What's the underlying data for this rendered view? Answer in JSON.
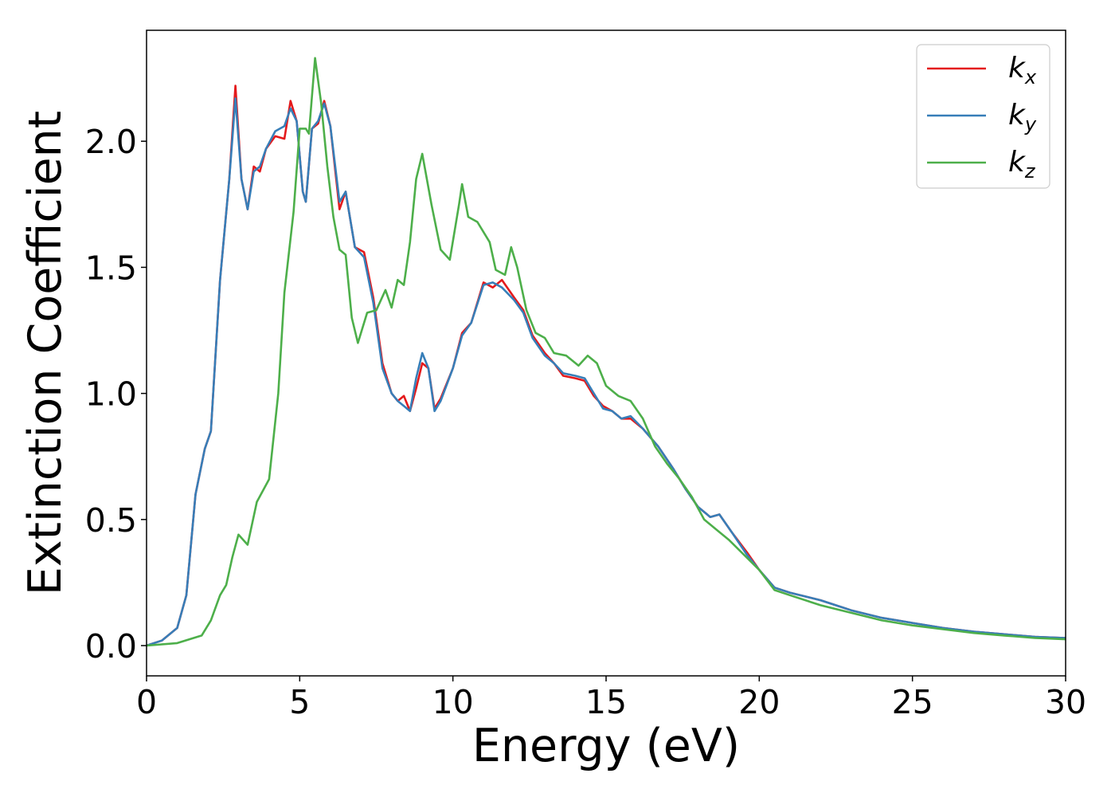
{
  "chart_data": {
    "type": "line",
    "xlabel": "Energy (eV)",
    "ylabel": "Extinction Coefficient",
    "xlim": [
      0,
      30
    ],
    "ylim": [
      -0.12,
      2.44
    ],
    "xticks": [
      "0",
      "5",
      "10",
      "15",
      "20",
      "25",
      "30"
    ],
    "yticks": [
      "0.0",
      "0.5",
      "1.0",
      "1.5",
      "2.0"
    ],
    "grid": false,
    "legend_position": "top-right",
    "series": [
      {
        "name": "k",
        "subscript": "x",
        "color": "#e41a1c",
        "points": [
          [
            0,
            0
          ],
          [
            0.5,
            0.02
          ],
          [
            1.0,
            0.07
          ],
          [
            1.3,
            0.2
          ],
          [
            1.6,
            0.6
          ],
          [
            1.9,
            0.78
          ],
          [
            2.1,
            0.85
          ],
          [
            2.4,
            1.45
          ],
          [
            2.7,
            1.85
          ],
          [
            2.9,
            2.22
          ],
          [
            3.1,
            1.85
          ],
          [
            3.3,
            1.73
          ],
          [
            3.5,
            1.9
          ],
          [
            3.7,
            1.88
          ],
          [
            3.9,
            1.97
          ],
          [
            4.2,
            2.02
          ],
          [
            4.5,
            2.01
          ],
          [
            4.7,
            2.16
          ],
          [
            4.9,
            2.08
          ],
          [
            5.1,
            1.8
          ],
          [
            5.2,
            1.76
          ],
          [
            5.4,
            2.05
          ],
          [
            5.6,
            2.07
          ],
          [
            5.8,
            2.16
          ],
          [
            6.0,
            2.06
          ],
          [
            6.3,
            1.73
          ],
          [
            6.5,
            1.8
          ],
          [
            6.8,
            1.58
          ],
          [
            7.1,
            1.56
          ],
          [
            7.4,
            1.38
          ],
          [
            7.7,
            1.12
          ],
          [
            8.0,
            1.0
          ],
          [
            8.2,
            0.97
          ],
          [
            8.4,
            0.99
          ],
          [
            8.6,
            0.93
          ],
          [
            8.8,
            1.02
          ],
          [
            9.0,
            1.12
          ],
          [
            9.2,
            1.1
          ],
          [
            9.4,
            0.94
          ],
          [
            9.6,
            0.98
          ],
          [
            10.0,
            1.1
          ],
          [
            10.3,
            1.24
          ],
          [
            10.6,
            1.28
          ],
          [
            11.0,
            1.44
          ],
          [
            11.3,
            1.42
          ],
          [
            11.6,
            1.45
          ],
          [
            12.0,
            1.38
          ],
          [
            12.3,
            1.33
          ],
          [
            12.6,
            1.23
          ],
          [
            13.0,
            1.16
          ],
          [
            13.3,
            1.12
          ],
          [
            13.6,
            1.07
          ],
          [
            14.0,
            1.06
          ],
          [
            14.3,
            1.05
          ],
          [
            14.6,
            0.99
          ],
          [
            14.9,
            0.95
          ],
          [
            15.2,
            0.93
          ],
          [
            15.5,
            0.9
          ],
          [
            15.8,
            0.9
          ],
          [
            16.2,
            0.86
          ],
          [
            16.7,
            0.79
          ],
          [
            17.2,
            0.7
          ],
          [
            17.6,
            0.62
          ],
          [
            18.0,
            0.55
          ],
          [
            18.4,
            0.51
          ],
          [
            18.7,
            0.52
          ],
          [
            19.1,
            0.45
          ],
          [
            19.6,
            0.37
          ],
          [
            20.0,
            0.3
          ],
          [
            20.5,
            0.23
          ],
          [
            21.0,
            0.21
          ],
          [
            22.0,
            0.18
          ],
          [
            23.0,
            0.14
          ],
          [
            24.0,
            0.11
          ],
          [
            25.0,
            0.09
          ],
          [
            26.0,
            0.07
          ],
          [
            27.0,
            0.055
          ],
          [
            28.0,
            0.045
          ],
          [
            29.0,
            0.035
          ],
          [
            30.0,
            0.03
          ]
        ]
      },
      {
        "name": "k",
        "subscript": "y",
        "color": "#377eb8",
        "points": [
          [
            0,
            0
          ],
          [
            0.5,
            0.02
          ],
          [
            1.0,
            0.07
          ],
          [
            1.3,
            0.2
          ],
          [
            1.6,
            0.6
          ],
          [
            1.9,
            0.78
          ],
          [
            2.1,
            0.85
          ],
          [
            2.4,
            1.45
          ],
          [
            2.7,
            1.85
          ],
          [
            2.9,
            2.17
          ],
          [
            3.1,
            1.85
          ],
          [
            3.3,
            1.73
          ],
          [
            3.5,
            1.88
          ],
          [
            3.7,
            1.9
          ],
          [
            3.9,
            1.97
          ],
          [
            4.2,
            2.04
          ],
          [
            4.5,
            2.06
          ],
          [
            4.7,
            2.13
          ],
          [
            4.9,
            2.08
          ],
          [
            5.1,
            1.8
          ],
          [
            5.2,
            1.76
          ],
          [
            5.4,
            2.05
          ],
          [
            5.6,
            2.08
          ],
          [
            5.8,
            2.15
          ],
          [
            6.0,
            2.06
          ],
          [
            6.3,
            1.76
          ],
          [
            6.5,
            1.8
          ],
          [
            6.8,
            1.58
          ],
          [
            7.1,
            1.54
          ],
          [
            7.4,
            1.36
          ],
          [
            7.7,
            1.1
          ],
          [
            8.0,
            1.0
          ],
          [
            8.2,
            0.97
          ],
          [
            8.4,
            0.95
          ],
          [
            8.6,
            0.93
          ],
          [
            8.8,
            1.06
          ],
          [
            9.0,
            1.16
          ],
          [
            9.2,
            1.1
          ],
          [
            9.4,
            0.93
          ],
          [
            9.6,
            0.97
          ],
          [
            10.0,
            1.1
          ],
          [
            10.3,
            1.23
          ],
          [
            10.6,
            1.28
          ],
          [
            11.0,
            1.43
          ],
          [
            11.3,
            1.44
          ],
          [
            11.6,
            1.42
          ],
          [
            12.0,
            1.37
          ],
          [
            12.3,
            1.32
          ],
          [
            12.6,
            1.22
          ],
          [
            13.0,
            1.15
          ],
          [
            13.3,
            1.12
          ],
          [
            13.6,
            1.08
          ],
          [
            14.0,
            1.07
          ],
          [
            14.3,
            1.06
          ],
          [
            14.6,
            1.0
          ],
          [
            14.9,
            0.94
          ],
          [
            15.2,
            0.93
          ],
          [
            15.5,
            0.9
          ],
          [
            15.8,
            0.91
          ],
          [
            16.2,
            0.86
          ],
          [
            16.7,
            0.79
          ],
          [
            17.2,
            0.7
          ],
          [
            17.6,
            0.62
          ],
          [
            18.0,
            0.55
          ],
          [
            18.4,
            0.51
          ],
          [
            18.7,
            0.52
          ],
          [
            19.1,
            0.45
          ],
          [
            19.6,
            0.36
          ],
          [
            20.0,
            0.3
          ],
          [
            20.5,
            0.23
          ],
          [
            21.0,
            0.21
          ],
          [
            22.0,
            0.18
          ],
          [
            23.0,
            0.14
          ],
          [
            24.0,
            0.11
          ],
          [
            25.0,
            0.09
          ],
          [
            26.0,
            0.07
          ],
          [
            27.0,
            0.055
          ],
          [
            28.0,
            0.045
          ],
          [
            29.0,
            0.035
          ],
          [
            30.0,
            0.03
          ]
        ]
      },
      {
        "name": "k",
        "subscript": "z",
        "color": "#4daf4a",
        "points": [
          [
            0,
            0
          ],
          [
            1.0,
            0.01
          ],
          [
            1.8,
            0.04
          ],
          [
            2.1,
            0.1
          ],
          [
            2.4,
            0.2
          ],
          [
            2.6,
            0.24
          ],
          [
            2.8,
            0.35
          ],
          [
            3.0,
            0.44
          ],
          [
            3.3,
            0.4
          ],
          [
            3.6,
            0.57
          ],
          [
            4.0,
            0.66
          ],
          [
            4.3,
            1.0
          ],
          [
            4.5,
            1.4
          ],
          [
            4.8,
            1.72
          ],
          [
            5.0,
            2.05
          ],
          [
            5.2,
            2.05
          ],
          [
            5.3,
            2.03
          ],
          [
            5.5,
            2.33
          ],
          [
            5.7,
            2.15
          ],
          [
            5.9,
            1.9
          ],
          [
            6.1,
            1.7
          ],
          [
            6.3,
            1.57
          ],
          [
            6.5,
            1.55
          ],
          [
            6.7,
            1.3
          ],
          [
            6.9,
            1.2
          ],
          [
            7.2,
            1.32
          ],
          [
            7.5,
            1.33
          ],
          [
            7.8,
            1.41
          ],
          [
            8.0,
            1.34
          ],
          [
            8.2,
            1.45
          ],
          [
            8.4,
            1.43
          ],
          [
            8.6,
            1.6
          ],
          [
            8.8,
            1.85
          ],
          [
            9.0,
            1.95
          ],
          [
            9.3,
            1.75
          ],
          [
            9.6,
            1.57
          ],
          [
            9.9,
            1.53
          ],
          [
            10.2,
            1.75
          ],
          [
            10.3,
            1.83
          ],
          [
            10.5,
            1.7
          ],
          [
            10.8,
            1.68
          ],
          [
            11.2,
            1.6
          ],
          [
            11.4,
            1.49
          ],
          [
            11.7,
            1.47
          ],
          [
            11.9,
            1.58
          ],
          [
            12.1,
            1.5
          ],
          [
            12.4,
            1.33
          ],
          [
            12.7,
            1.24
          ],
          [
            13.0,
            1.22
          ],
          [
            13.3,
            1.16
          ],
          [
            13.7,
            1.15
          ],
          [
            14.1,
            1.11
          ],
          [
            14.4,
            1.15
          ],
          [
            14.7,
            1.12
          ],
          [
            15.0,
            1.03
          ],
          [
            15.4,
            0.99
          ],
          [
            15.8,
            0.97
          ],
          [
            16.2,
            0.9
          ],
          [
            16.6,
            0.79
          ],
          [
            17.0,
            0.72
          ],
          [
            17.4,
            0.66
          ],
          [
            17.8,
            0.59
          ],
          [
            18.2,
            0.5
          ],
          [
            18.6,
            0.46
          ],
          [
            19.0,
            0.42
          ],
          [
            19.5,
            0.36
          ],
          [
            20.0,
            0.3
          ],
          [
            20.5,
            0.22
          ],
          [
            21.0,
            0.2
          ],
          [
            22.0,
            0.16
          ],
          [
            23.0,
            0.13
          ],
          [
            24.0,
            0.1
          ],
          [
            25.0,
            0.08
          ],
          [
            26.0,
            0.065
          ],
          [
            27.0,
            0.05
          ],
          [
            28.0,
            0.04
          ],
          [
            29.0,
            0.03
          ],
          [
            30.0,
            0.025
          ]
        ]
      }
    ]
  }
}
